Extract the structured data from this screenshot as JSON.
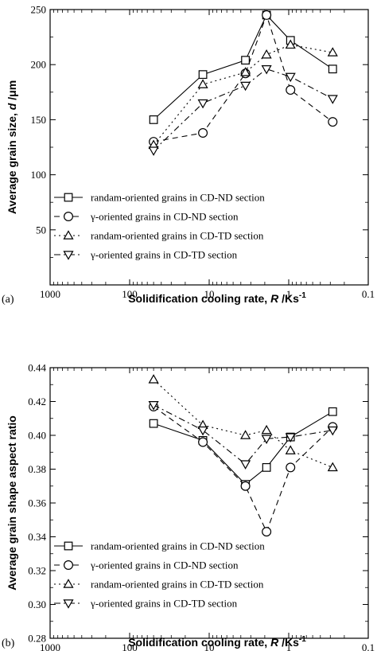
{
  "chart_data": [
    {
      "type": "line",
      "panel_label": "(a)",
      "xlabel_parts": [
        "Solidification cooling rate, ",
        "R",
        " /Ks",
        "-1"
      ],
      "ylabel_parts": [
        "Average grain size, ",
        "d",
        " /μm"
      ],
      "x_scale": "log-reversed",
      "xlim": [
        1000,
        0.1
      ],
      "ylim": [
        0,
        250
      ],
      "x_ticks": [
        1000,
        100,
        10,
        1,
        0.1
      ],
      "x_tick_labels": [
        "1000",
        "100",
        "10",
        "1",
        "0.1"
      ],
      "y_ticks": [
        50,
        100,
        150,
        200,
        250
      ],
      "y_tick_labels": [
        "50",
        "100",
        "150",
        "200",
        "250"
      ],
      "grid": false,
      "legend_position": "lower-left",
      "series": [
        {
          "name": "randam-oriented grains in CD-ND section",
          "marker": "square",
          "dash": "solid",
          "x": [
            50,
            12,
            3.5,
            1.9,
            0.95,
            0.28
          ],
          "y": [
            150,
            191,
            204,
            245,
            222,
            196
          ]
        },
        {
          "name": "γ-oriented grains in CD-ND section",
          "marker": "circle",
          "dash": "dashed",
          "x": [
            50,
            12,
            3.5,
            1.9,
            0.95,
            0.28
          ],
          "y": [
            130,
            138,
            192,
            245,
            177,
            148
          ]
        },
        {
          "name": "randam-oriented grains in CD-TD section",
          "marker": "triangle-up",
          "dash": "dotted",
          "x": [
            50,
            12,
            3.5,
            1.9,
            0.95,
            0.28
          ],
          "y": [
            127,
            182,
            193,
            209,
            218,
            211
          ]
        },
        {
          "name": "γ-oriented grains in CD-TD section",
          "marker": "triangle-down",
          "dash": "dashdot",
          "x": [
            50,
            12,
            3.5,
            1.9,
            0.95,
            0.28
          ],
          "y": [
            122,
            165,
            181,
            196,
            189,
            169
          ]
        }
      ]
    },
    {
      "type": "line",
      "panel_label": "(b)",
      "xlabel_parts": [
        "Solidification cooling rate, ",
        "R",
        " /Ks",
        "-1"
      ],
      "ylabel_parts": [
        "Average grain shape aspect ratio",
        "",
        ""
      ],
      "x_scale": "log-reversed",
      "xlim": [
        1000,
        0.1
      ],
      "ylim": [
        0.28,
        0.44
      ],
      "x_ticks": [
        1000,
        100,
        10,
        1,
        0.1
      ],
      "x_tick_labels": [
        "1000",
        "100",
        "10",
        "1",
        "0.1"
      ],
      "y_ticks": [
        0.28,
        0.3,
        0.32,
        0.34,
        0.36,
        0.38,
        0.4,
        0.42,
        0.44
      ],
      "y_tick_labels": [
        "0.28",
        "0.30",
        "0.32",
        "0.34",
        "0.36",
        "0.38",
        "0.40",
        "0.42",
        "0.44"
      ],
      "grid": false,
      "legend_position": "lower-left",
      "series": [
        {
          "name": "randam-oriented grains in CD-ND section",
          "marker": "square",
          "dash": "solid",
          "x": [
            50,
            12,
            3.5,
            1.9,
            0.95,
            0.28
          ],
          "y": [
            0.407,
            0.397,
            0.371,
            0.381,
            0.399,
            0.414
          ]
        },
        {
          "name": "γ-oriented grains in CD-ND section",
          "marker": "circle",
          "dash": "dashed",
          "x": [
            50,
            12,
            3.5,
            1.9,
            0.95,
            0.28
          ],
          "y": [
            0.417,
            0.396,
            0.37,
            0.343,
            0.381,
            0.405
          ]
        },
        {
          "name": "randam-oriented grains in CD-TD section",
          "marker": "triangle-up",
          "dash": "dotted",
          "x": [
            50,
            12,
            3.5,
            1.9,
            0.95,
            0.28
          ],
          "y": [
            0.433,
            0.406,
            0.4,
            0.403,
            0.391,
            0.381
          ]
        },
        {
          "name": "γ-oriented grains in CD-TD section",
          "marker": "triangle-down",
          "dash": "dashdot",
          "x": [
            50,
            12,
            3.5,
            1.9,
            0.95,
            0.28
          ],
          "y": [
            0.418,
            0.403,
            0.383,
            0.398,
            0.399,
            0.403
          ]
        }
      ]
    }
  ]
}
